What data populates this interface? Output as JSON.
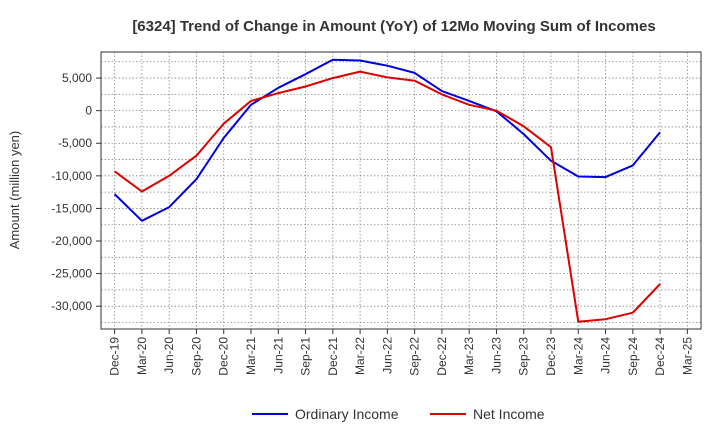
{
  "chart_data": {
    "type": "line",
    "title": "[6324]  Trend of Change in Amount (YoY) of 12Mo Moving Sum of Incomes",
    "xlabel": "",
    "ylabel": "Amount (million yen)",
    "ylim": [
      -33500,
      9000
    ],
    "yticks": [
      5000,
      0,
      -5000,
      -10000,
      -15000,
      -20000,
      -25000,
      -30000
    ],
    "ytick_labels": [
      "5,000",
      "0",
      "-5,000",
      "-10,000",
      "-15,000",
      "-20,000",
      "-25,000",
      "-30,000"
    ],
    "categories": [
      "Dec-19",
      "Mar-20",
      "Jun-20",
      "Sep-20",
      "Dec-20",
      "Mar-21",
      "Jun-21",
      "Sep-21",
      "Dec-21",
      "Mar-22",
      "Jun-22",
      "Sep-22",
      "Dec-22",
      "Mar-23",
      "Jun-23",
      "Sep-23",
      "Dec-23",
      "Mar-24",
      "Jun-24",
      "Sep-24",
      "Dec-24",
      "Mar-25"
    ],
    "grid": true,
    "legend_position": "bottom",
    "series": [
      {
        "name": "Ordinary Income",
        "color": "#0000dd",
        "values": [
          -12800,
          -16900,
          -14800,
          -10500,
          -4200,
          900,
          3500,
          5600,
          7800,
          7700,
          6900,
          5800,
          3000,
          1500,
          -100,
          -3600,
          -7700,
          -10100,
          -10200,
          -8400,
          -3300,
          null
        ]
      },
      {
        "name": "Net Income",
        "color": "#dd0000",
        "values": [
          -9300,
          -12400,
          -10000,
          -6900,
          -2000,
          1500,
          2700,
          3700,
          5000,
          6000,
          5100,
          4600,
          2500,
          900,
          0,
          -2400,
          -5600,
          -32400,
          -32000,
          -31000,
          -26600,
          null
        ]
      }
    ]
  }
}
